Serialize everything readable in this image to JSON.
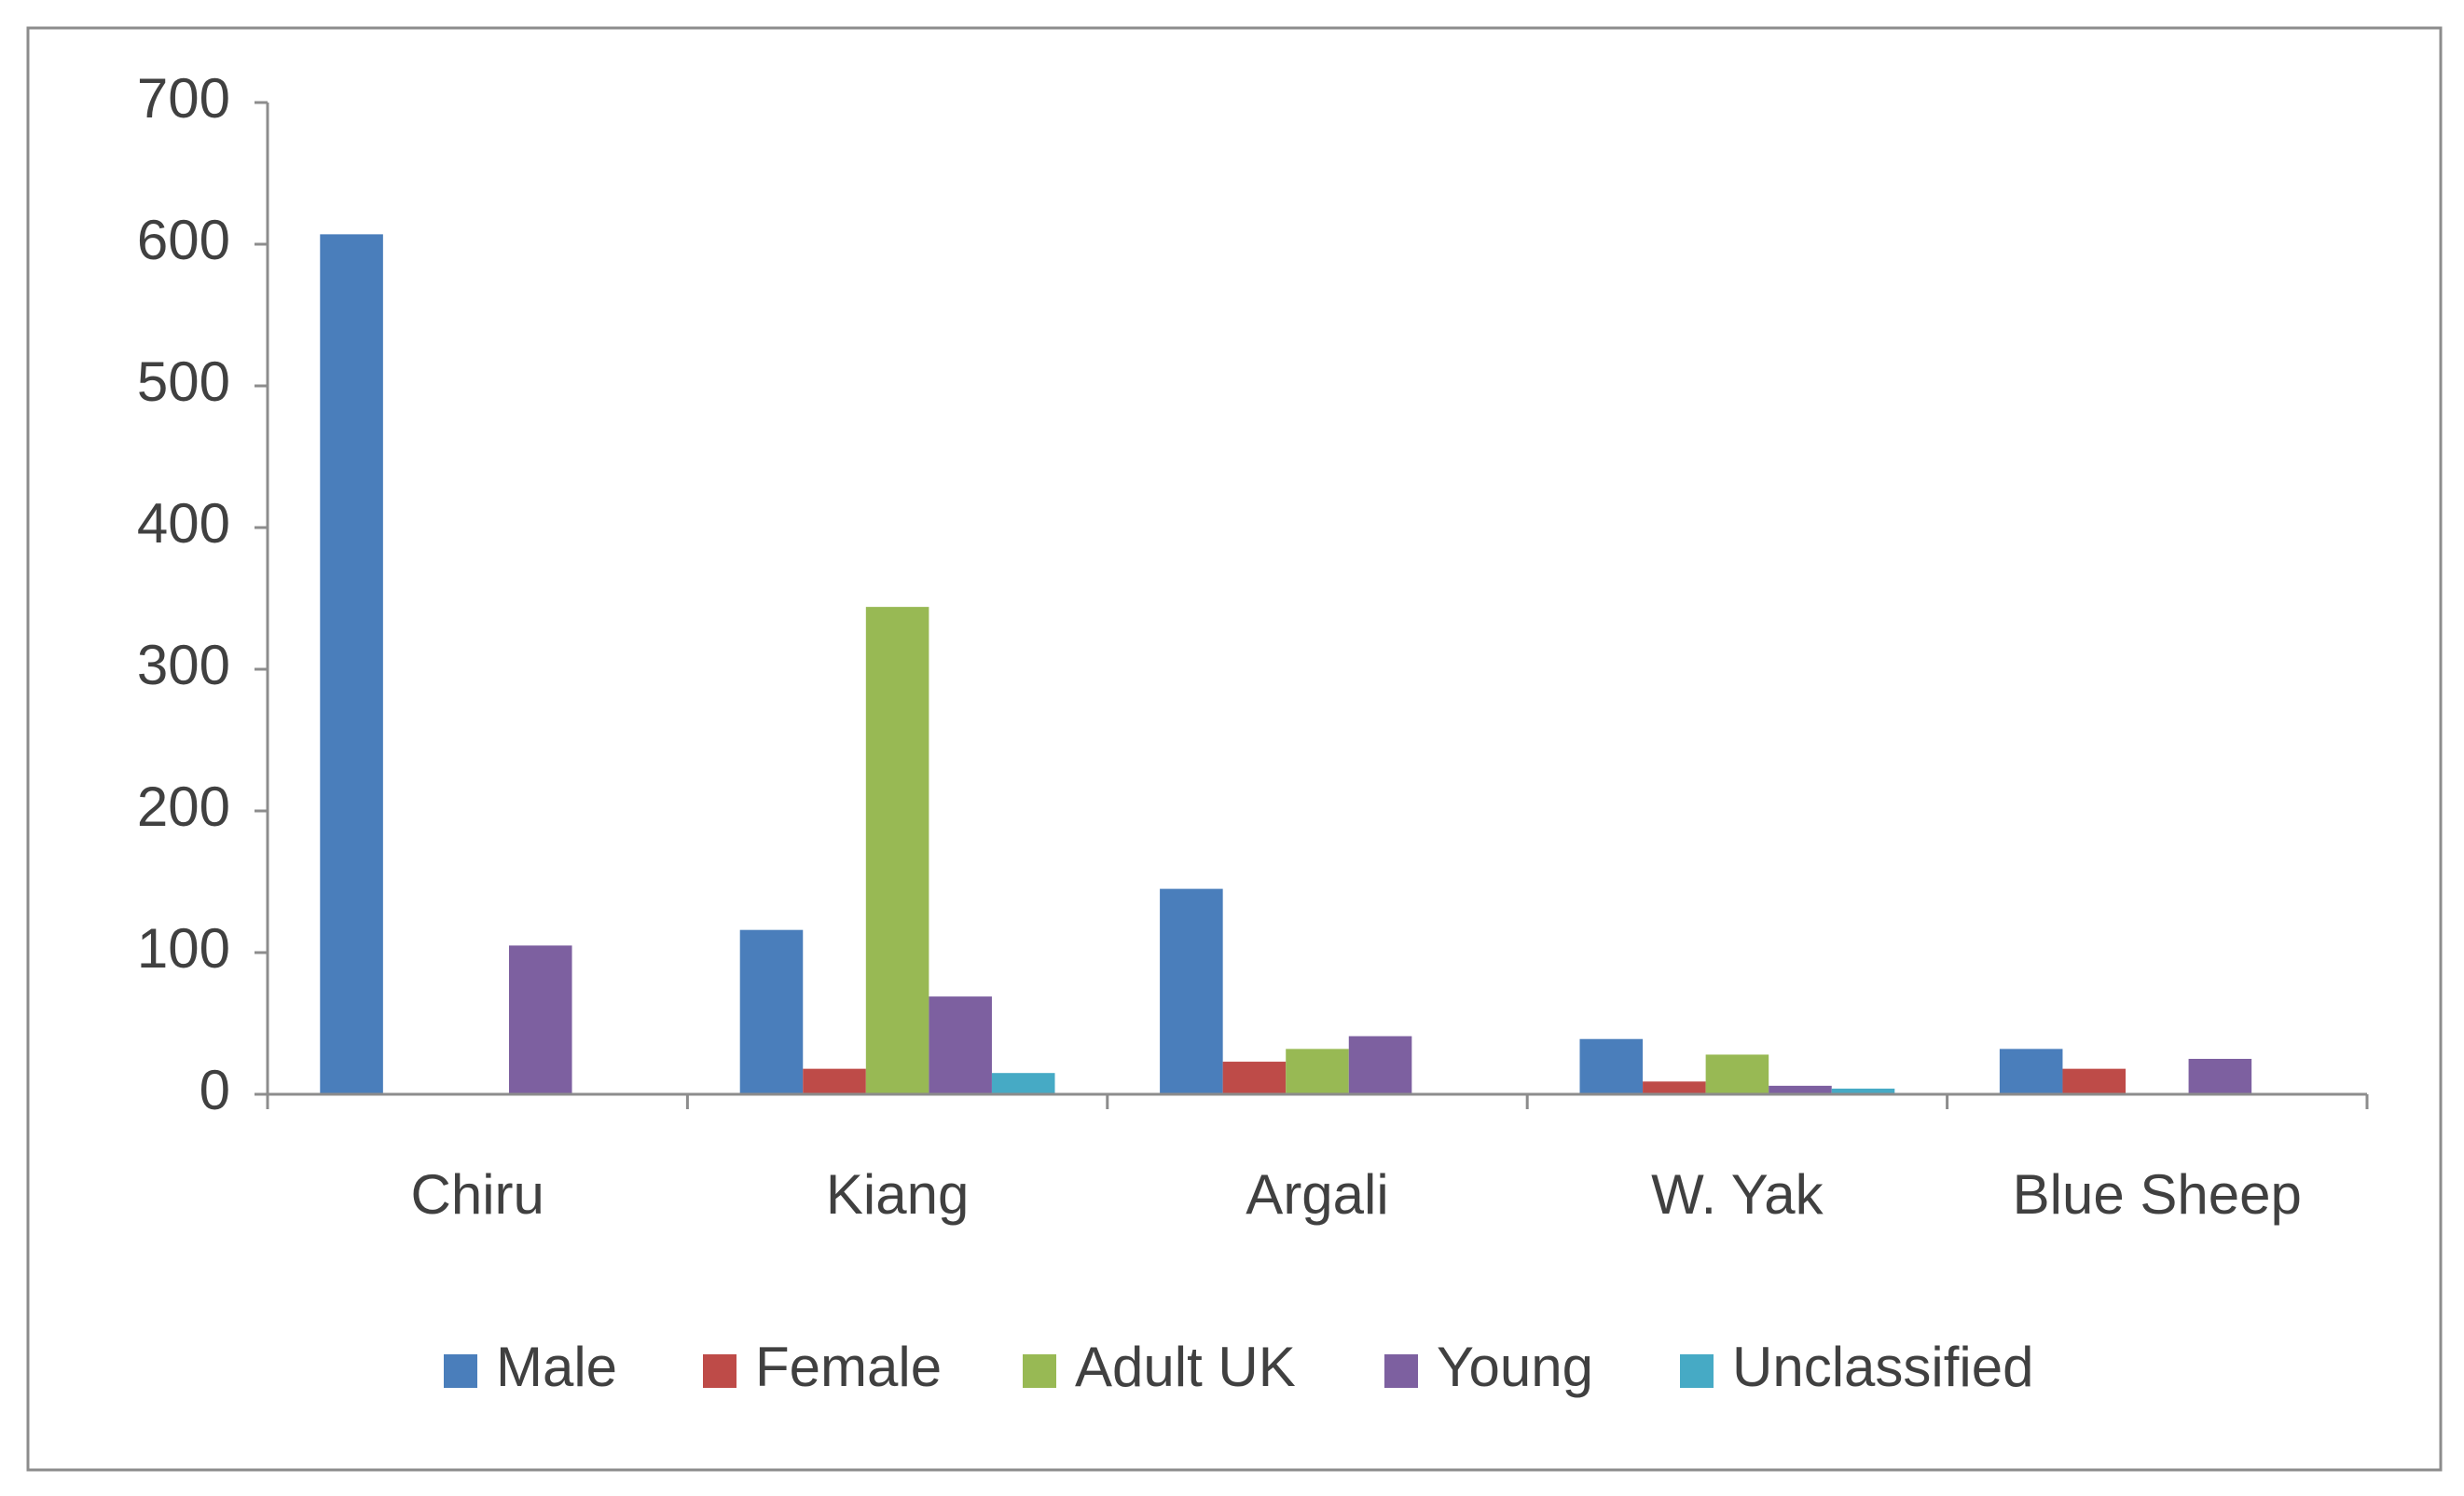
{
  "chart_data": {
    "type": "bar",
    "categories": [
      "Chiru",
      "Kiang",
      "Argali",
      "W. Yak",
      "Blue Sheep"
    ],
    "series": [
      {
        "name": "Male",
        "color": "#4a7ebb",
        "values": [
          607,
          116,
          145,
          39,
          32
        ]
      },
      {
        "name": "Female",
        "color": "#be4b48",
        "values": [
          0,
          18,
          23,
          9,
          18
        ]
      },
      {
        "name": "Adult UK",
        "color": "#98b954",
        "values": [
          0,
          344,
          32,
          28,
          0
        ]
      },
      {
        "name": "Young",
        "color": "#7d60a0",
        "values": [
          105,
          69,
          41,
          6,
          25
        ]
      },
      {
        "name": "Unclassified",
        "color": "#46aac5",
        "values": [
          0,
          15,
          0,
          4,
          0
        ]
      }
    ],
    "ylim": [
      0,
      700
    ],
    "yticks": [
      0,
      100,
      200,
      300,
      400,
      500,
      600,
      700
    ],
    "grid": false,
    "legend": "bottom"
  }
}
